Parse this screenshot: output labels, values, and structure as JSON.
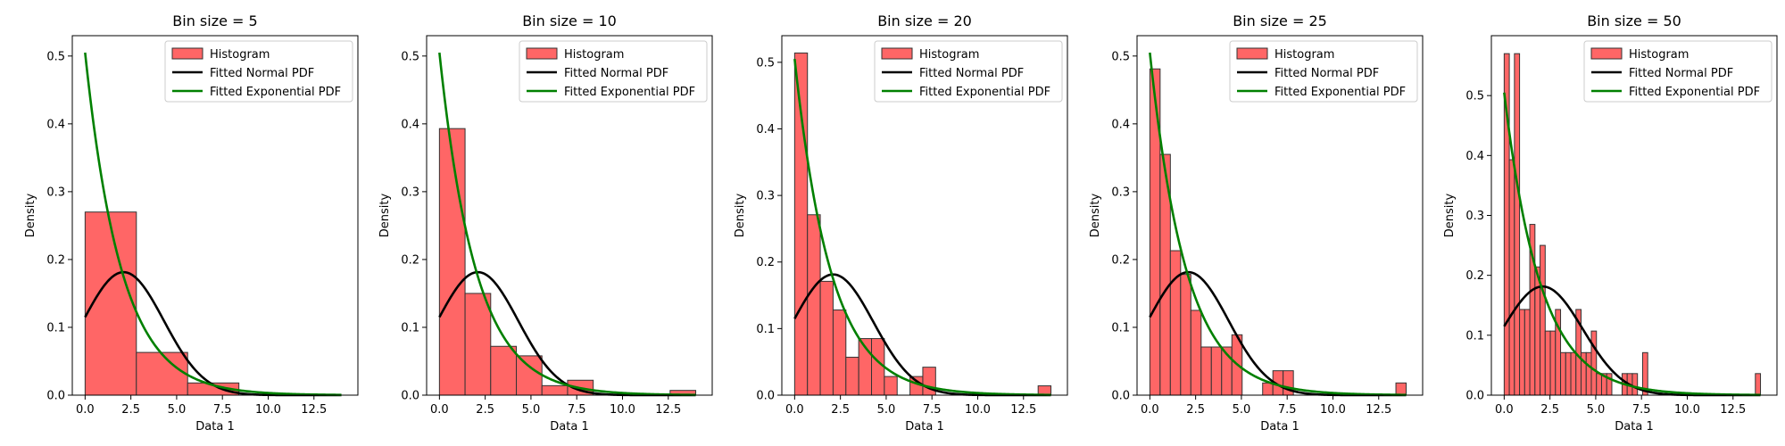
{
  "figure": {
    "xlabel": "Data 1",
    "ylabel": "Density",
    "legend_labels": [
      "Histogram",
      "Fitted Normal PDF",
      "Fitted Exponential PDF"
    ],
    "colors": {
      "histogram": "#ff6666",
      "histogram_edge": "#333333",
      "normal": "#000000",
      "exponential": "#008000"
    }
  },
  "chart_data": [
    {
      "type": "bar",
      "title": "Bin size = 5",
      "xlabel": "Data 1",
      "ylabel": "Density",
      "xlim": [
        -0.7,
        14.9
      ],
      "ylim": [
        0,
        0.53
      ],
      "xticks": [
        0,
        2.5,
        5,
        7.5,
        10,
        12.5
      ],
      "xtick_labels": [
        "0.0",
        "2.5",
        "5.0",
        "7.5",
        "10.0",
        "12.5"
      ],
      "yticks": [
        0,
        0.1,
        0.2,
        0.3,
        0.4,
        0.5
      ],
      "ytick_labels": [
        "0.0",
        "0.1",
        "0.2",
        "0.3",
        "0.4",
        "0.5"
      ],
      "legend_position": "top-right",
      "bin_range": [
        0,
        14
      ],
      "bin_count": 5,
      "values": [
        0.27,
        0.063,
        0.018,
        0,
        0
      ],
      "normal_pdf": {
        "mean": 2.1,
        "std": 2.2
      },
      "exponential_pdf": {
        "rate": 0.505
      }
    },
    {
      "type": "bar",
      "title": "Bin size = 10",
      "xlabel": "Data 1",
      "ylabel": "Density",
      "xlim": [
        -0.7,
        14.9
      ],
      "ylim": [
        0,
        0.53
      ],
      "xticks": [
        0,
        2.5,
        5,
        7.5,
        10,
        12.5
      ],
      "xtick_labels": [
        "0.0",
        "2.5",
        "5.0",
        "7.5",
        "10.0",
        "12.5"
      ],
      "yticks": [
        0,
        0.1,
        0.2,
        0.3,
        0.4,
        0.5
      ],
      "ytick_labels": [
        "0.0",
        "0.1",
        "0.2",
        "0.3",
        "0.4",
        "0.5"
      ],
      "legend_position": "top-right",
      "bin_range": [
        0,
        14
      ],
      "bin_count": 10,
      "values": [
        0.393,
        0.15,
        0.072,
        0.058,
        0.014,
        0.022,
        0,
        0,
        0,
        0.007
      ],
      "normal_pdf": {
        "mean": 2.1,
        "std": 2.2
      },
      "exponential_pdf": {
        "rate": 0.505
      }
    },
    {
      "type": "bar",
      "title": "Bin size = 20",
      "xlabel": "Data 1",
      "ylabel": "Density",
      "xlim": [
        -0.7,
        14.9
      ],
      "ylim": [
        0,
        0.54
      ],
      "xticks": [
        0,
        2.5,
        5,
        7.5,
        10,
        12.5
      ],
      "xtick_labels": [
        "0.0",
        "2.5",
        "5.0",
        "7.5",
        "10.0",
        "12.5"
      ],
      "yticks": [
        0,
        0.1,
        0.2,
        0.3,
        0.4,
        0.5
      ],
      "ytick_labels": [
        "0.0",
        "0.1",
        "0.2",
        "0.3",
        "0.4",
        "0.5"
      ],
      "legend_position": "top-right",
      "bin_range": [
        0,
        14
      ],
      "bin_count": 20,
      "values": [
        0.514,
        0.271,
        0.171,
        0.128,
        0.057,
        0.085,
        0.085,
        0.028,
        0,
        0.028,
        0.042,
        0,
        0,
        0,
        0,
        0,
        0,
        0,
        0,
        0.014
      ],
      "normal_pdf": {
        "mean": 2.1,
        "std": 2.2
      },
      "exponential_pdf": {
        "rate": 0.505
      }
    },
    {
      "type": "bar",
      "title": "Bin size = 25",
      "xlabel": "Data 1",
      "ylabel": "Density",
      "xlim": [
        -0.7,
        14.9
      ],
      "ylim": [
        0,
        0.53
      ],
      "xticks": [
        0,
        2.5,
        5,
        7.5,
        10,
        12.5
      ],
      "xtick_labels": [
        "0.0",
        "2.5",
        "5.0",
        "7.5",
        "10.0",
        "12.5"
      ],
      "yticks": [
        0,
        0.1,
        0.2,
        0.3,
        0.4,
        0.5
      ],
      "ytick_labels": [
        "0.0",
        "0.1",
        "0.2",
        "0.3",
        "0.4",
        "0.5"
      ],
      "legend_position": "top-right",
      "bin_range": [
        0,
        14
      ],
      "bin_count": 25,
      "values": [
        0.481,
        0.355,
        0.213,
        0.178,
        0.125,
        0.071,
        0.071,
        0.071,
        0.089,
        0,
        0,
        0.018,
        0.036,
        0.036,
        0,
        0,
        0,
        0,
        0,
        0,
        0,
        0,
        0,
        0,
        0.018
      ],
      "normal_pdf": {
        "mean": 2.1,
        "std": 2.2
      },
      "exponential_pdf": {
        "rate": 0.505
      }
    },
    {
      "type": "bar",
      "title": "Bin size = 50",
      "xlabel": "Data 1",
      "ylabel": "Density",
      "xlim": [
        -0.7,
        14.9
      ],
      "ylim": [
        0,
        0.6
      ],
      "xticks": [
        0,
        2.5,
        5,
        7.5,
        10,
        12.5
      ],
      "xtick_labels": [
        "0.0",
        "2.5",
        "5.0",
        "7.5",
        "10.0",
        "12.5"
      ],
      "yticks": [
        0,
        0.1,
        0.2,
        0.3,
        0.4,
        0.5
      ],
      "ytick_labels": [
        "0.0",
        "0.1",
        "0.2",
        "0.3",
        "0.4",
        "0.5"
      ],
      "legend_position": "top-right",
      "bin_range": [
        0,
        14
      ],
      "bin_count": 50,
      "values": [
        0.57,
        0.393,
        0.57,
        0.143,
        0.143,
        0.285,
        0.214,
        0.25,
        0.107,
        0.107,
        0.143,
        0.071,
        0.071,
        0.071,
        0.143,
        0.071,
        0.071,
        0.107,
        0.036,
        0.036,
        0.036,
        0,
        0,
        0.036,
        0.036,
        0.036,
        0,
        0.071,
        0,
        0,
        0,
        0,
        0,
        0,
        0,
        0,
        0,
        0,
        0,
        0,
        0,
        0,
        0,
        0,
        0,
        0,
        0,
        0,
        0,
        0.036
      ],
      "normal_pdf": {
        "mean": 2.1,
        "std": 2.2
      },
      "exponential_pdf": {
        "rate": 0.505
      }
    }
  ]
}
